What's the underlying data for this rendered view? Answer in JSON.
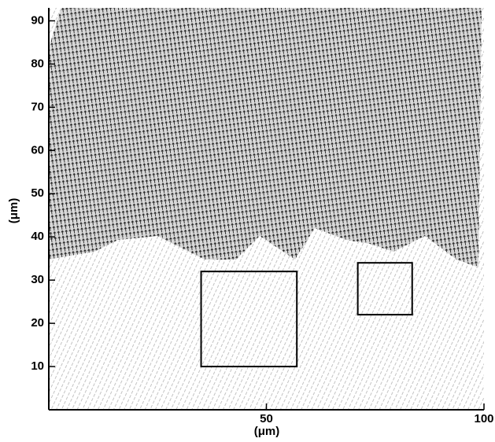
{
  "chart_data": {
    "type": "vector-field",
    "xlabel": "(μm)",
    "ylabel": "(μm)",
    "xlim": [
      0,
      100
    ],
    "ylim": [
      0,
      93
    ],
    "xticks": [
      50,
      100
    ],
    "yticks": [
      10,
      20,
      30,
      40,
      50,
      60,
      70,
      80,
      90
    ],
    "regions": [
      {
        "x": [
          35,
          57
        ],
        "y": [
          10,
          32
        ]
      },
      {
        "x": [
          71,
          83.5
        ],
        "y": [
          22,
          34
        ]
      }
    ]
  }
}
